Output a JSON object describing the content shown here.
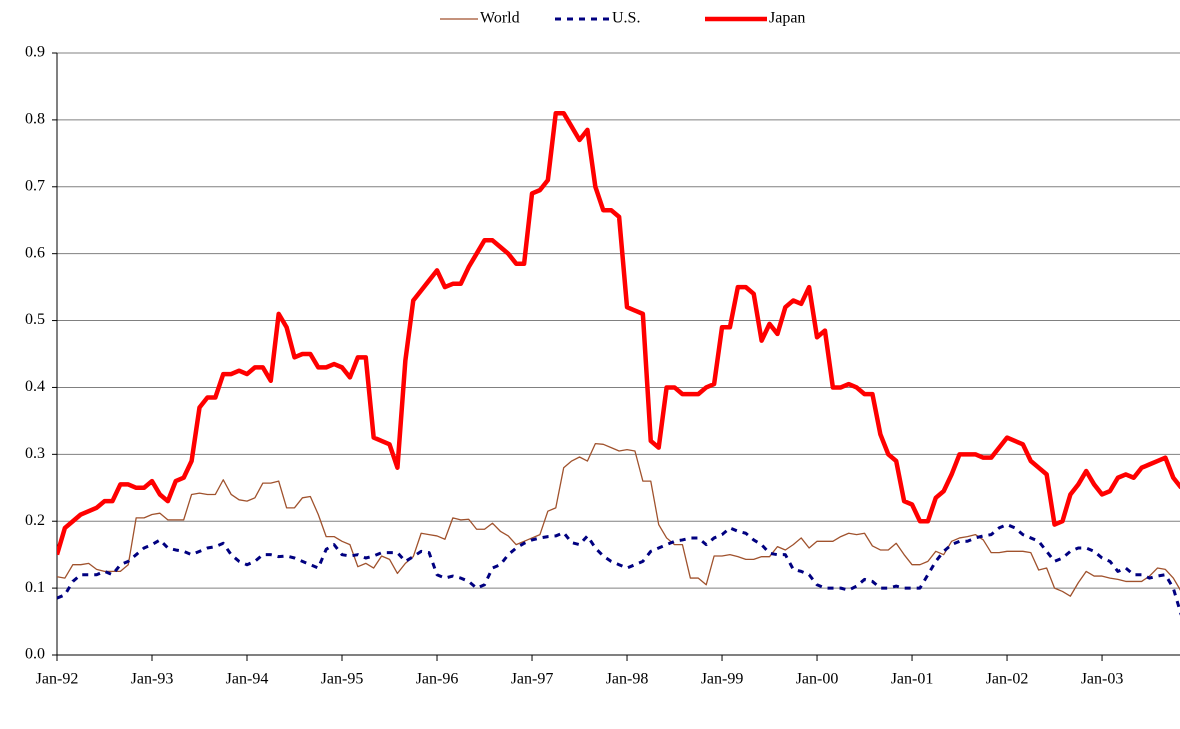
{
  "chart_data": {
    "type": "line",
    "categories": [
      "Jan-92",
      null,
      null,
      null,
      null,
      null,
      null,
      null,
      null,
      null,
      null,
      null,
      "Jan-93",
      null,
      null,
      null,
      null,
      null,
      null,
      null,
      null,
      null,
      null,
      null,
      "Jan-94",
      null,
      null,
      null,
      null,
      null,
      null,
      null,
      null,
      null,
      null,
      null,
      "Jan-95",
      null,
      null,
      null,
      null,
      null,
      null,
      null,
      null,
      null,
      null,
      null,
      "Jan-96",
      null,
      null,
      null,
      null,
      null,
      null,
      null,
      null,
      null,
      null,
      null,
      "Jan-97",
      null,
      null,
      null,
      null,
      null,
      null,
      null,
      null,
      null,
      null,
      null,
      "Jan-98",
      null,
      null,
      null,
      null,
      null,
      null,
      null,
      null,
      null,
      null,
      null,
      "Jan-99",
      null,
      null,
      null,
      null,
      null,
      null,
      null,
      null,
      null,
      null,
      null,
      "Jan-00",
      null,
      null,
      null,
      null,
      null,
      null,
      null,
      null,
      null,
      null,
      null,
      "Jan-01",
      null,
      null,
      null,
      null,
      null,
      null,
      null,
      null,
      null,
      null,
      null,
      "Jan-02",
      null,
      null,
      null,
      null,
      null,
      null,
      null,
      null,
      null,
      null,
      null,
      "Jan-03",
      null,
      null,
      null,
      null,
      null,
      null,
      null,
      null,
      null,
      null
    ],
    "series": [
      {
        "name": "World",
        "color": "#a0522d",
        "width": 1.3,
        "dash": "none",
        "values": [
          0.117,
          0.115,
          0.135,
          0.135,
          0.137,
          0.128,
          0.125,
          0.125,
          0.125,
          0.135,
          0.205,
          0.205,
          0.21,
          0.212,
          0.202,
          0.202,
          0.202,
          0.24,
          0.242,
          0.24,
          0.24,
          0.262,
          0.24,
          0.232,
          0.23,
          0.235,
          0.257,
          0.257,
          0.26,
          0.22,
          0.22,
          0.235,
          0.237,
          0.21,
          0.177,
          0.177,
          0.17,
          0.165,
          0.132,
          0.137,
          0.13,
          0.148,
          0.143,
          0.122,
          0.137,
          0.147,
          0.182,
          0.18,
          0.178,
          0.173,
          0.205,
          0.202,
          0.203,
          0.188,
          0.188,
          0.197,
          0.185,
          0.178,
          0.165,
          0.17,
          0.175,
          0.18,
          0.215,
          0.22,
          0.28,
          0.29,
          0.296,
          0.29,
          0.316,
          0.315,
          0.31,
          0.305,
          0.307,
          0.305,
          0.26,
          0.26,
          0.195,
          0.175,
          0.165,
          0.165,
          0.115,
          0.115,
          0.105,
          0.148,
          0.148,
          0.15,
          0.147,
          0.143,
          0.143,
          0.147,
          0.147,
          0.162,
          0.157,
          0.165,
          0.175,
          0.16,
          0.17,
          0.17,
          0.17,
          0.177,
          0.182,
          0.18,
          0.182,
          0.163,
          0.157,
          0.157,
          0.167,
          0.15,
          0.135,
          0.135,
          0.14,
          0.155,
          0.15,
          0.17,
          0.175,
          0.177,
          0.18,
          0.172,
          0.153,
          0.153,
          0.155,
          0.155,
          0.155,
          0.153,
          0.127,
          0.13,
          0.1,
          0.095,
          0.088,
          0.108,
          0.125,
          0.118,
          0.118,
          0.115,
          0.113,
          0.11,
          0.11,
          0.11,
          0.118,
          0.13,
          0.128,
          0.115,
          0.095
        ]
      },
      {
        "name": "U.S.",
        "color": "#000080",
        "width": 3,
        "dash": "6,6",
        "values": [
          0.085,
          0.09,
          0.11,
          0.12,
          0.12,
          0.12,
          0.125,
          0.12,
          0.135,
          0.14,
          0.15,
          0.16,
          0.165,
          0.172,
          0.16,
          0.157,
          0.155,
          0.15,
          0.155,
          0.16,
          0.162,
          0.167,
          0.15,
          0.14,
          0.135,
          0.14,
          0.15,
          0.15,
          0.147,
          0.148,
          0.145,
          0.14,
          0.135,
          0.13,
          0.158,
          0.165,
          0.15,
          0.148,
          0.15,
          0.145,
          0.148,
          0.153,
          0.153,
          0.153,
          0.14,
          0.147,
          0.155,
          0.153,
          0.12,
          0.115,
          0.118,
          0.115,
          0.11,
          0.1,
          0.105,
          0.13,
          0.135,
          0.15,
          0.16,
          0.167,
          0.172,
          0.175,
          0.177,
          0.178,
          0.183,
          0.168,
          0.165,
          0.178,
          0.16,
          0.148,
          0.14,
          0.135,
          0.13,
          0.135,
          0.14,
          0.155,
          0.16,
          0.165,
          0.17,
          0.172,
          0.175,
          0.175,
          0.165,
          0.175,
          0.18,
          0.19,
          0.185,
          0.182,
          0.172,
          0.165,
          0.152,
          0.15,
          0.15,
          0.128,
          0.125,
          0.12,
          0.105,
          0.1,
          0.1,
          0.1,
          0.097,
          0.103,
          0.113,
          0.11,
          0.1,
          0.1,
          0.103,
          0.1,
          0.1,
          0.1,
          0.12,
          0.14,
          0.155,
          0.165,
          0.17,
          0.17,
          0.175,
          0.178,
          0.18,
          0.19,
          0.195,
          0.19,
          0.18,
          0.175,
          0.17,
          0.155,
          0.14,
          0.145,
          0.155,
          0.16,
          0.16,
          0.155,
          0.145,
          0.14,
          0.125,
          0.13,
          0.12,
          0.12,
          0.115,
          0.118,
          0.12,
          0.1,
          0.06
        ]
      },
      {
        "name": "Japan",
        "color": "#ff0000",
        "width": 4.5,
        "dash": "none",
        "values": [
          0.15,
          0.19,
          0.2,
          0.21,
          0.215,
          0.22,
          0.23,
          0.23,
          0.255,
          0.255,
          0.25,
          0.25,
          0.26,
          0.24,
          0.23,
          0.26,
          0.265,
          0.29,
          0.37,
          0.385,
          0.385,
          0.42,
          0.42,
          0.425,
          0.42,
          0.43,
          0.43,
          0.41,
          0.51,
          0.49,
          0.445,
          0.45,
          0.45,
          0.43,
          0.43,
          0.435,
          0.43,
          0.415,
          0.445,
          0.445,
          0.325,
          0.32,
          0.315,
          0.28,
          0.44,
          0.53,
          0.545,
          0.56,
          0.575,
          0.55,
          0.555,
          0.555,
          0.58,
          0.6,
          0.62,
          0.62,
          0.61,
          0.6,
          0.585,
          0.585,
          0.69,
          0.695,
          0.71,
          0.81,
          0.81,
          0.79,
          0.77,
          0.785,
          0.7,
          0.665,
          0.665,
          0.655,
          0.52,
          0.515,
          0.51,
          0.32,
          0.31,
          0.4,
          0.4,
          0.39,
          0.39,
          0.39,
          0.4,
          0.405,
          0.49,
          0.49,
          0.55,
          0.55,
          0.54,
          0.47,
          0.495,
          0.48,
          0.52,
          0.53,
          0.525,
          0.55,
          0.475,
          0.485,
          0.4,
          0.4,
          0.405,
          0.4,
          0.39,
          0.39,
          0.33,
          0.3,
          0.29,
          0.23,
          0.225,
          0.2,
          0.2,
          0.235,
          0.245,
          0.27,
          0.3,
          0.3,
          0.3,
          0.295,
          0.295,
          0.31,
          0.325,
          0.32,
          0.315,
          0.29,
          0.28,
          0.27,
          0.195,
          0.2,
          0.24,
          0.255,
          0.275,
          0.255,
          0.24,
          0.245,
          0.265,
          0.27,
          0.265,
          0.28,
          0.285,
          0.29,
          0.295,
          0.265,
          0.25
        ]
      }
    ],
    "ylim": [
      0,
      0.9
    ],
    "yticks": [
      {
        "value": 0,
        "label": "0.0"
      },
      0.1,
      0.2,
      0.3,
      0.4,
      0.5,
      0.6,
      0.7,
      0.8,
      0.9
    ],
    "grid": true,
    "legend": "top"
  }
}
